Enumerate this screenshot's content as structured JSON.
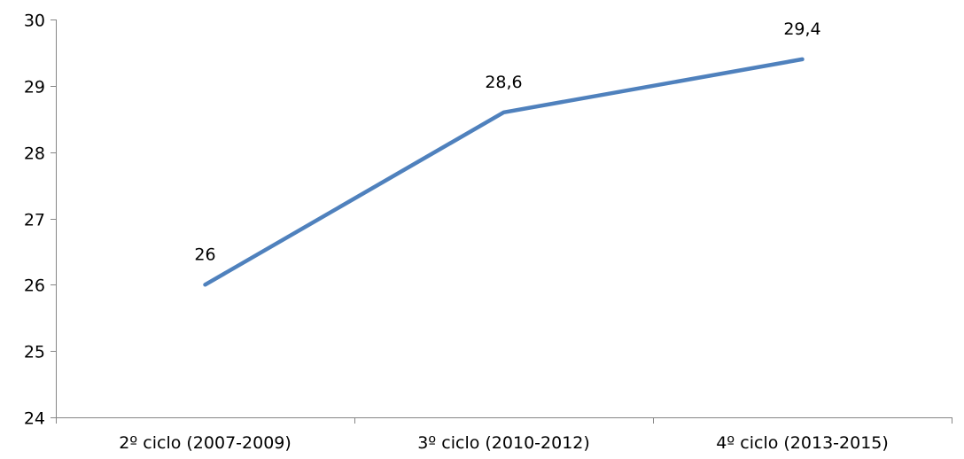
{
  "chart_data": {
    "type": "line",
    "title": "",
    "xlabel": "",
    "ylabel": "",
    "categories": [
      "2º ciclo (2007-2009)",
      "3º ciclo (2010-2012)",
      "4º ciclo (2013-2015)"
    ],
    "series": [
      {
        "values": [
          26,
          28.6,
          29.4
        ],
        "data_labels": [
          "26",
          "28,6",
          "29,4"
        ],
        "color": "#4F81BD"
      }
    ],
    "ylim": [
      24,
      30
    ],
    "yticks": [
      24,
      25,
      26,
      27,
      28,
      29,
      30
    ],
    "ytick_labels": [
      "24",
      "25",
      "26",
      "27",
      "28",
      "29",
      "30"
    ],
    "grid": false,
    "legend": "none",
    "axis_color": "#868686"
  }
}
